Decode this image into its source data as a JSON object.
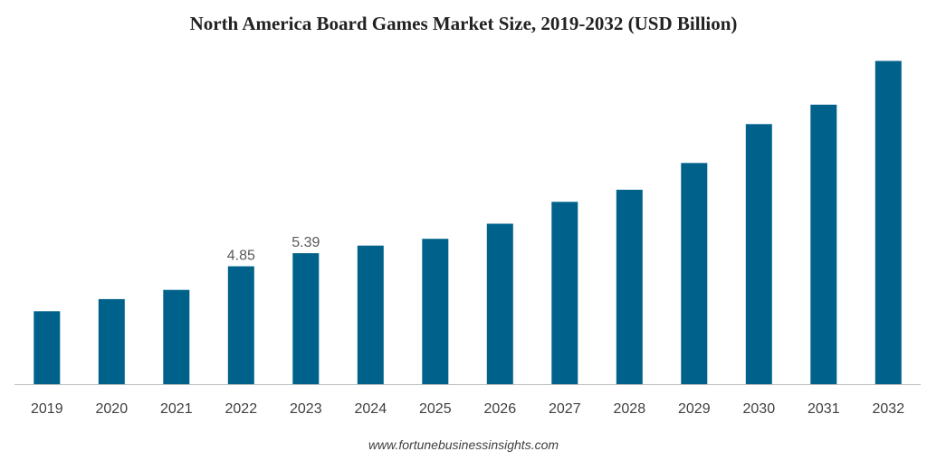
{
  "chart_data": {
    "type": "bar",
    "title": "North America Board Games Market Size, 2019-2032 (USD Billion)",
    "categories": [
      "2019",
      "2020",
      "2021",
      "2022",
      "2023",
      "2024",
      "2025",
      "2026",
      "2027",
      "2028",
      "2029",
      "2030",
      "2031",
      "2032"
    ],
    "values": [
      3.0,
      3.5,
      3.88,
      4.85,
      5.39,
      5.7,
      5.98,
      6.6,
      7.5,
      8.0,
      9.1,
      10.7,
      11.5,
      13.3
    ],
    "data_labels": [
      null,
      null,
      null,
      "4.85",
      "5.39",
      null,
      null,
      null,
      null,
      null,
      null,
      null,
      null,
      null
    ],
    "xlabel": "",
    "ylabel": "",
    "ylim": [
      0,
      13.5
    ],
    "grid": false,
    "bar_color": "#00628b",
    "axis_color": "#bfbfbf"
  },
  "source": "www.fortunebusinessinsights.com"
}
